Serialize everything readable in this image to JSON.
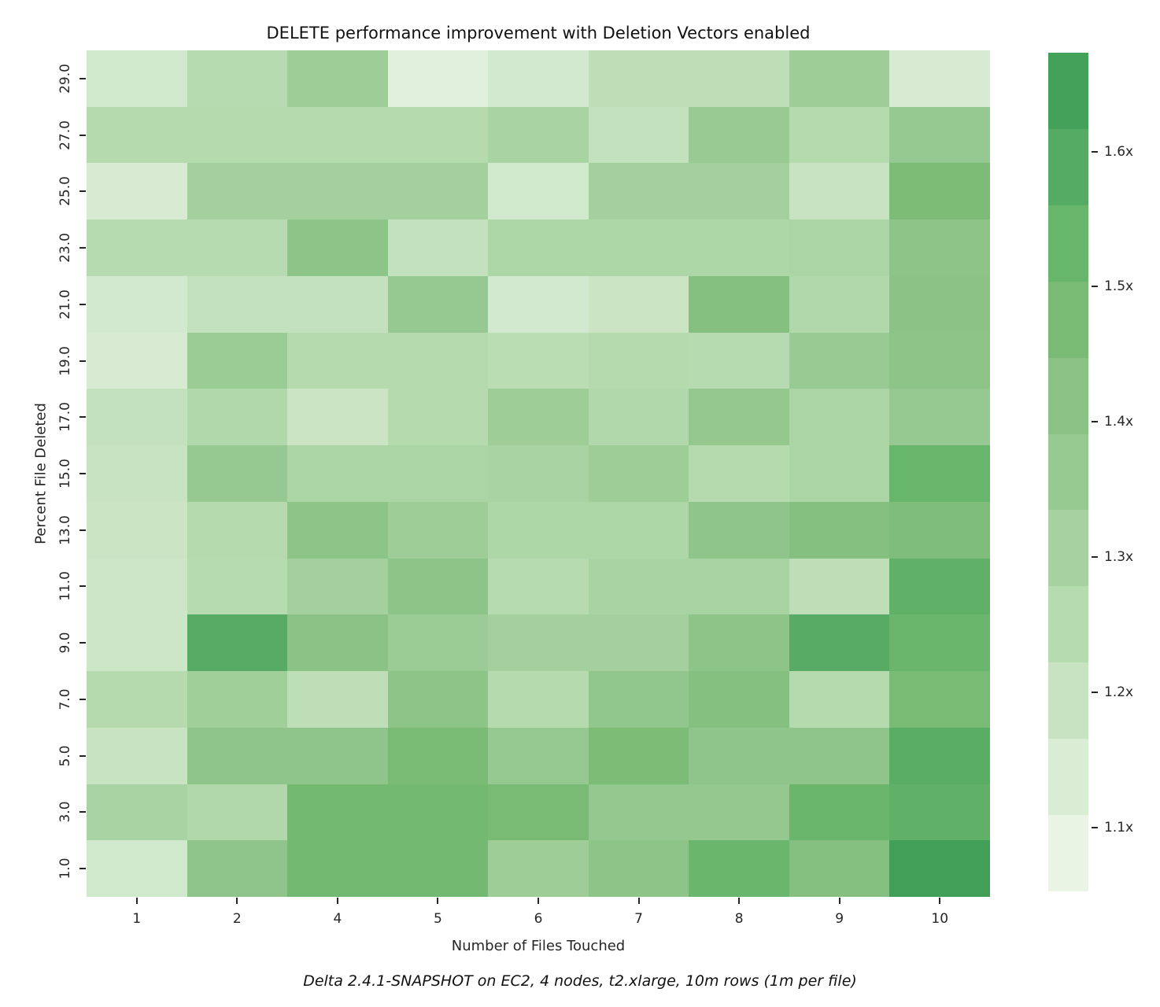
{
  "caption": "Delta 2.4.1-SNAPSHOT on EC2, 4 nodes, t2.xlarge, 10m rows (1m per file)",
  "chart_data": {
    "type": "heatmap",
    "title": "DELETE performance improvement with Deletion Vectors enabled",
    "xlabel": "Number of Files Touched",
    "ylabel": "Percent File Deleted",
    "x_categories": [
      "1",
      "2",
      "4",
      "5",
      "6",
      "7",
      "8",
      "9",
      "10"
    ],
    "y_categories_top_to_bottom": [
      "29.0",
      "27.0",
      "25.0",
      "23.0",
      "21.0",
      "19.0",
      "17.0",
      "15.0",
      "13.0",
      "11.0",
      "9.0",
      "7.0",
      "5.0",
      "3.0",
      "1.0"
    ],
    "values_note": "speedup multiplier (x), rows ordered top-to-bottom matching y_categories_top_to_bottom",
    "values": [
      [
        1.13,
        1.21,
        1.3,
        1.08,
        1.12,
        1.19,
        1.19,
        1.3,
        1.11
      ],
      [
        1.22,
        1.22,
        1.22,
        1.22,
        1.26,
        1.17,
        1.32,
        1.22,
        1.33
      ],
      [
        1.11,
        1.28,
        1.28,
        1.28,
        1.13,
        1.28,
        1.28,
        1.16,
        1.43
      ],
      [
        1.21,
        1.21,
        1.37,
        1.17,
        1.24,
        1.24,
        1.24,
        1.25,
        1.37
      ],
      [
        1.12,
        1.17,
        1.17,
        1.33,
        1.12,
        1.15,
        1.4,
        1.23,
        1.38
      ],
      [
        1.11,
        1.31,
        1.22,
        1.22,
        1.2,
        1.22,
        1.21,
        1.32,
        1.37
      ],
      [
        1.17,
        1.23,
        1.15,
        1.22,
        1.3,
        1.23,
        1.34,
        1.25,
        1.33
      ],
      [
        1.16,
        1.33,
        1.25,
        1.25,
        1.26,
        1.3,
        1.22,
        1.25,
        1.5
      ],
      [
        1.15,
        1.22,
        1.37,
        1.3,
        1.24,
        1.24,
        1.36,
        1.4,
        1.42
      ],
      [
        1.14,
        1.21,
        1.28,
        1.37,
        1.21,
        1.26,
        1.26,
        1.19,
        1.53
      ],
      [
        1.14,
        1.56,
        1.38,
        1.31,
        1.28,
        1.28,
        1.37,
        1.56,
        1.49
      ],
      [
        1.22,
        1.29,
        1.19,
        1.37,
        1.22,
        1.35,
        1.4,
        1.22,
        1.44
      ],
      [
        1.16,
        1.36,
        1.36,
        1.44,
        1.33,
        1.43,
        1.36,
        1.36,
        1.55
      ],
      [
        1.26,
        1.23,
        1.46,
        1.46,
        1.44,
        1.34,
        1.34,
        1.49,
        1.53
      ],
      [
        1.13,
        1.36,
        1.46,
        1.46,
        1.3,
        1.37,
        1.49,
        1.4,
        1.65
      ]
    ],
    "colorbar": {
      "vmin": 1.053,
      "vmax": 1.673,
      "tick_labels": [
        "1.6x",
        "1.5x",
        "1.4x",
        "1.3x",
        "1.2x",
        "1.1x"
      ],
      "tick_values": [
        1.6,
        1.5,
        1.4,
        1.3,
        1.2,
        1.1
      ],
      "segment_colors_top_to_bottom": [
        "#44a159",
        "#55ab64",
        "#68b56c",
        "#79bb74",
        "#8ac385",
        "#97ca91",
        "#a6d2a0",
        "#b6dbb1",
        "#c8e3c2",
        "#d9edd5",
        "#e9f4e5"
      ]
    },
    "color_stops": [
      {
        "v": 1.06,
        "c": "#e9f4e5"
      },
      {
        "v": 1.11,
        "c": "#d6ebd2"
      },
      {
        "v": 1.165,
        "c": "#c5e2bf"
      },
      {
        "v": 1.22,
        "c": "#b4daae"
      },
      {
        "v": 1.275,
        "c": "#a4d19d"
      },
      {
        "v": 1.33,
        "c": "#96c991"
      },
      {
        "v": 1.385,
        "c": "#89c284"
      },
      {
        "v": 1.44,
        "c": "#79bb74"
      },
      {
        "v": 1.5,
        "c": "#68b56c"
      },
      {
        "v": 1.56,
        "c": "#57ab64"
      },
      {
        "v": 1.62,
        "c": "#49a45c"
      },
      {
        "v": 1.67,
        "c": "#3d9b53"
      }
    ]
  }
}
